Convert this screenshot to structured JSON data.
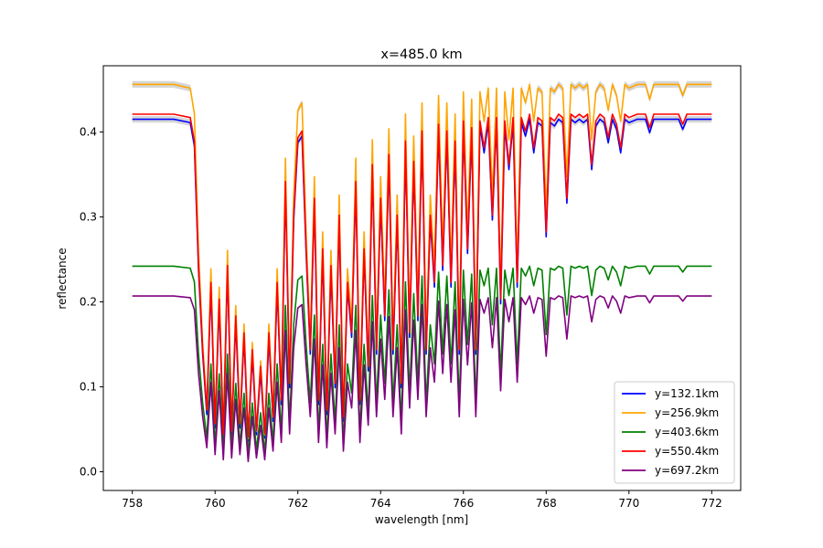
{
  "chart_data": {
    "type": "line",
    "title": "x=485.0 km",
    "xlabel": "wavelength [nm]",
    "ylabel": "reflectance",
    "xlim": [
      757.3,
      772.7
    ],
    "ylim": [
      -0.022,
      0.478
    ],
    "xticks": [
      758,
      760,
      762,
      764,
      766,
      768,
      770,
      772
    ],
    "yticks": [
      0.0,
      0.1,
      0.2,
      0.3,
      0.4
    ],
    "ytick_labels": [
      "0.0",
      "0.1",
      "0.2",
      "0.3",
      "0.4"
    ],
    "grid": false,
    "legend_position": "lower-right",
    "band_color": "#bbbbbb",
    "template": {
      "x": [
        758.0,
        759.0,
        759.4,
        759.5,
        759.6,
        759.7,
        759.8,
        759.9,
        760.0,
        760.1,
        760.2,
        760.3,
        760.4,
        760.5,
        760.6,
        760.7,
        760.8,
        760.9,
        761.0,
        761.1,
        761.2,
        761.3,
        761.4,
        761.5,
        761.6,
        761.7,
        761.8,
        761.9,
        762.0,
        762.1,
        762.2,
        762.3,
        762.4,
        762.5,
        762.6,
        762.7,
        762.8,
        762.9,
        763.0,
        763.1,
        763.2,
        763.3,
        763.4,
        763.5,
        763.6,
        763.7,
        763.8,
        763.9,
        764.0,
        764.1,
        764.2,
        764.3,
        764.4,
        764.5,
        764.6,
        764.7,
        764.8,
        764.9,
        765.0,
        765.1,
        765.2,
        765.3,
        765.4,
        765.5,
        765.6,
        765.7,
        765.8,
        765.9,
        766.0,
        766.1,
        766.2,
        766.3,
        766.4,
        766.5,
        766.6,
        766.7,
        766.8,
        766.9,
        767.0,
        767.1,
        767.2,
        767.3,
        767.4,
        767.5,
        767.6,
        767.7,
        767.8,
        767.9,
        768.0,
        768.1,
        768.2,
        768.3,
        768.4,
        768.5,
        768.6,
        768.7,
        768.8,
        768.9,
        769.0,
        769.1,
        769.2,
        769.3,
        769.4,
        769.5,
        769.6,
        769.7,
        769.8,
        769.9,
        770.0,
        770.2,
        770.4,
        770.5,
        770.6,
        770.8,
        771.0,
        771.2,
        771.3,
        771.4,
        771.6,
        771.8,
        772.0
      ],
      "fraction": [
        1.0,
        1.0,
        0.99,
        0.92,
        0.55,
        0.3,
        0.12,
        0.5,
        0.08,
        0.45,
        0.05,
        0.55,
        0.06,
        0.4,
        0.08,
        0.35,
        0.04,
        0.3,
        0.06,
        0.25,
        0.05,
        0.35,
        0.1,
        0.5,
        0.15,
        0.8,
        0.2,
        0.7,
        0.93,
        0.95,
        0.6,
        0.3,
        0.75,
        0.15,
        0.6,
        0.12,
        0.55,
        0.2,
        0.7,
        0.1,
        0.5,
        0.35,
        0.8,
        0.15,
        0.6,
        0.25,
        0.85,
        0.3,
        0.75,
        0.4,
        0.88,
        0.3,
        0.7,
        0.2,
        0.92,
        0.35,
        0.86,
        0.4,
        0.95,
        0.3,
        0.7,
        0.5,
        0.97,
        0.55,
        0.95,
        0.5,
        0.92,
        0.3,
        0.98,
        0.6,
        0.96,
        0.3,
        0.98,
        0.9,
        0.99,
        0.7,
        0.99,
        0.45,
        0.98,
        0.85,
        0.99,
        0.5,
        0.99,
        0.95,
        1.0,
        0.9,
        0.99,
        0.98,
        0.65,
        0.99,
        0.98,
        1.0,
        0.99,
        0.75,
        1.0,
        0.99,
        1.0,
        0.99,
        1.0,
        0.85,
        0.98,
        1.0,
        0.99,
        0.93,
        1.0,
        0.97,
        0.9,
        1.0,
        0.99,
        1.0,
        1.0,
        0.96,
        1.0,
        1.0,
        1.0,
        1.0,
        0.97,
        1.0,
        1.0,
        1.0,
        1.0
      ]
    },
    "series": [
      {
        "name": "y=132.1km",
        "color": "#0000ff",
        "continuum": 0.415,
        "floor": 0.02,
        "band_halfwidth": 0.004
      },
      {
        "name": "y=256.9km",
        "color": "#ffa500",
        "continuum": 0.456,
        "floor": 0.022,
        "band_halfwidth": 0.004
      },
      {
        "name": "y=403.6km",
        "color": "#008000",
        "continuum": 0.242,
        "floor": 0.012,
        "band_halfwidth": 0.0
      },
      {
        "name": "y=550.4km",
        "color": "#ff0000",
        "continuum": 0.421,
        "floor": 0.025,
        "band_halfwidth": 0.0
      },
      {
        "name": "y=697.2km",
        "color": "#800080",
        "continuum": 0.207,
        "floor": 0.004,
        "band_halfwidth": 0.0
      }
    ]
  }
}
